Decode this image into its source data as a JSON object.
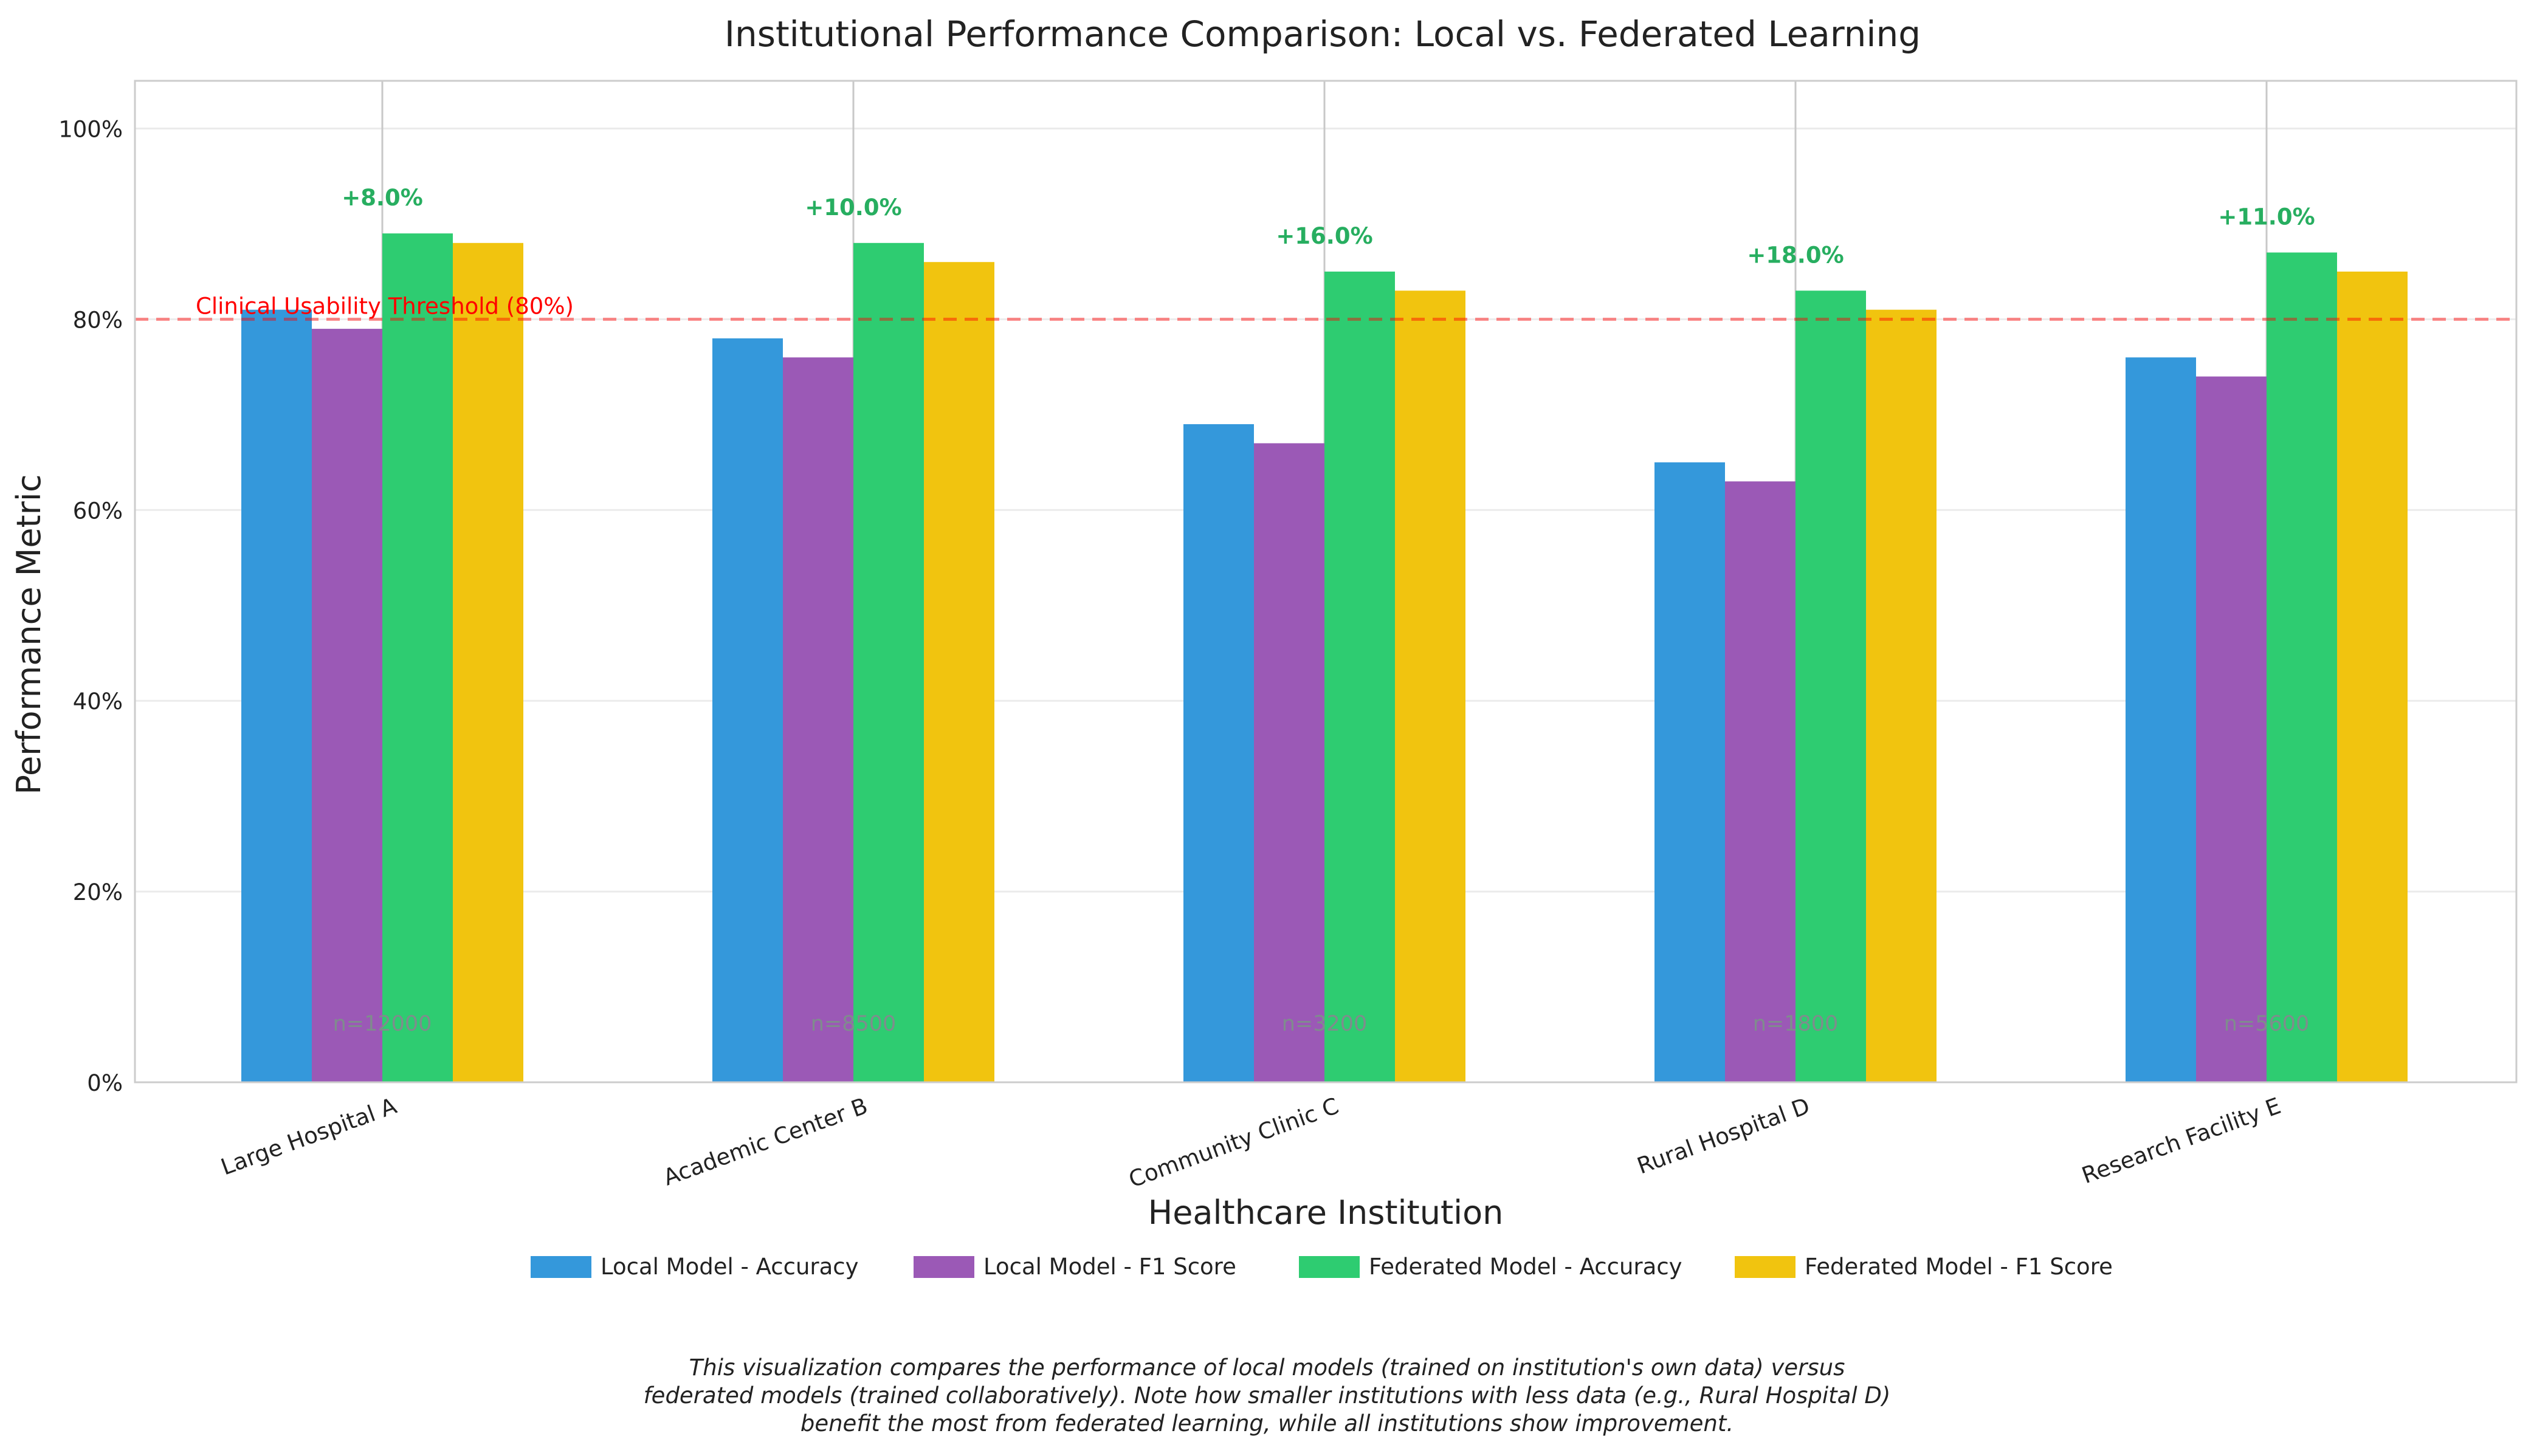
{
  "chart_data": {
    "type": "bar",
    "title": "Institutional Performance Comparison: Local vs. Federated Learning",
    "xlabel": "Healthcare Institution",
    "ylabel": "Performance Metric",
    "ylim": [
      0,
      1.05
    ],
    "yticks": [
      {
        "value": 0,
        "label": "0%"
      },
      {
        "value": 0.2,
        "label": "20%"
      },
      {
        "value": 0.4,
        "label": "40%"
      },
      {
        "value": 0.6,
        "label": "60%"
      },
      {
        "value": 0.8,
        "label": "80%"
      },
      {
        "value": 1.0,
        "label": "100%"
      }
    ],
    "grid": true,
    "legend_position": "bottom-center",
    "categories": [
      "Large Hospital A",
      "Academic Center B",
      "Community Clinic C",
      "Rural Hospital D",
      "Research Facility E"
    ],
    "series": [
      {
        "name": "Local Model - Accuracy",
        "color": "#3498db",
        "values": [
          0.81,
          0.78,
          0.69,
          0.65,
          0.76
        ]
      },
      {
        "name": "Local Model - F1 Score",
        "color": "#9b59b6",
        "values": [
          0.79,
          0.76,
          0.67,
          0.63,
          0.74
        ]
      },
      {
        "name": "Federated Model - Accuracy",
        "color": "#2ecc71",
        "values": [
          0.89,
          0.88,
          0.85,
          0.83,
          0.87
        ]
      },
      {
        "name": "Federated Model - F1 Score",
        "color": "#f1c40f",
        "values": [
          0.88,
          0.86,
          0.83,
          0.81,
          0.85
        ]
      }
    ],
    "improvement_labels": [
      "+8.0%",
      "+10.0%",
      "+16.0%",
      "+18.0%",
      "+11.0%"
    ],
    "improvement_color": "#27ae60",
    "sample_sizes": [
      "n=12000",
      "n=8500",
      "n=3200",
      "n=1800",
      "n=5600"
    ],
    "threshold": {
      "value": 0.8,
      "label": "Clinical Usability Threshold (80%)",
      "color": "#ff0000"
    }
  },
  "caption_lines": [
    "This visualization compares the performance of local models (trained on institution's own data) versus",
    "federated models (trained collaboratively). Note how smaller institutions with less data (e.g., Rural Hospital D)",
    "benefit the most from federated learning, while all institutions show improvement."
  ]
}
